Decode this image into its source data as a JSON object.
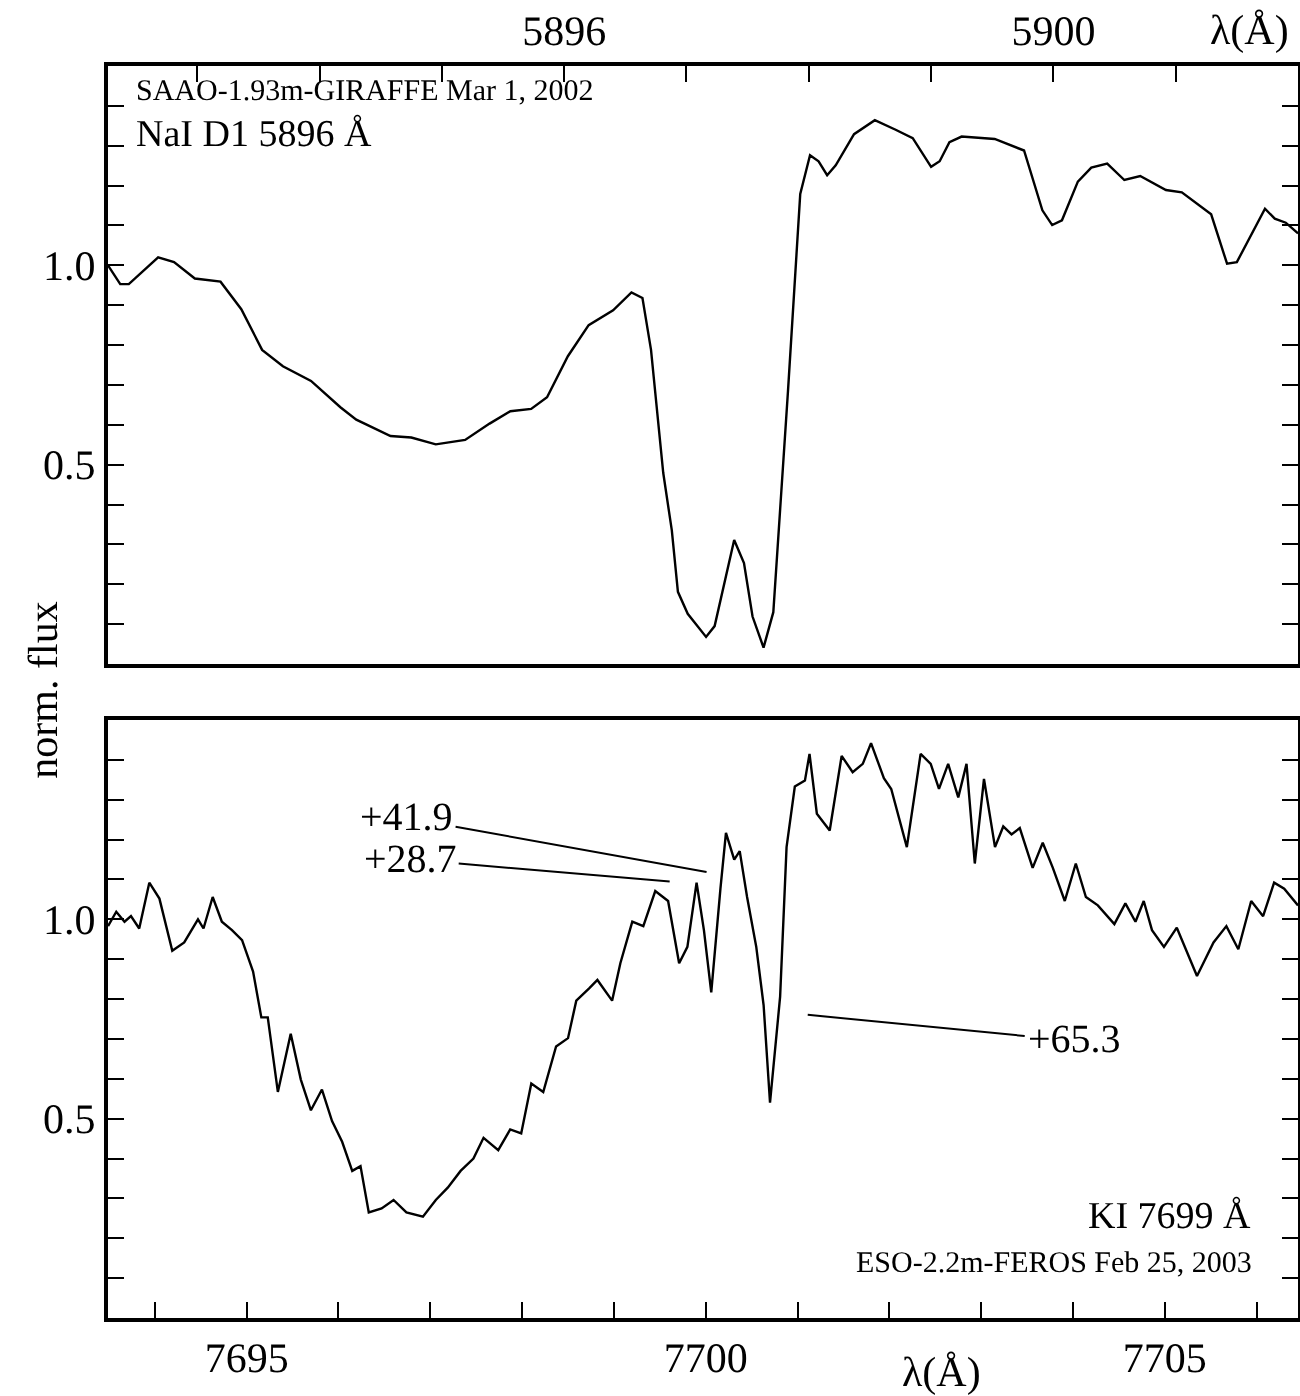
{
  "chart_data": [
    {
      "type": "line",
      "xlabel": "λ(Å)",
      "ylabel": "norm. flux",
      "annotations": [
        "SAAO-1.93m-GIRAFFE Mar 1, 2002",
        "NaI D1 5896 Å"
      ],
      "x": [
        5892.27,
        5892.37,
        5892.44,
        5892.68,
        5892.81,
        5892.98,
        5893.19,
        5893.36,
        5893.53,
        5893.7,
        5893.93,
        5894.17,
        5894.3,
        5894.58,
        5894.75,
        5894.95,
        5895.19,
        5895.39,
        5895.56,
        5895.73,
        5895.86,
        5896.03,
        5896.2,
        5896.4,
        5896.55,
        5896.64,
        5896.71,
        5896.81,
        5896.88,
        5896.93,
        5897.01,
        5897.16,
        5897.23,
        5897.39,
        5897.47,
        5897.54,
        5897.63,
        5897.71,
        5897.83,
        5897.93,
        5898.01,
        5898.08,
        5898.15,
        5898.22,
        5898.37,
        5898.54,
        5898.71,
        5898.85,
        5899.0,
        5899.07,
        5899.15,
        5899.25,
        5899.52,
        5899.76,
        5899.91,
        5899.99,
        5900.07,
        5900.2,
        5900.31,
        5900.44,
        5900.58,
        5900.71,
        5900.92,
        5901.05,
        5901.29,
        5901.42,
        5901.5,
        5901.73,
        5901.81,
        5901.9,
        5902.0
      ],
      "series": [
        {
          "color": "#000000",
          "values": [
            1.0,
            0.953,
            0.953,
            1.02,
            1.008,
            0.967,
            0.959,
            0.89,
            0.788,
            0.747,
            0.71,
            0.644,
            0.613,
            0.572,
            0.568,
            0.551,
            0.562,
            0.603,
            0.634,
            0.64,
            0.669,
            0.772,
            0.85,
            0.887,
            0.932,
            0.918,
            0.788,
            0.479,
            0.335,
            0.181,
            0.126,
            0.068,
            0.095,
            0.311,
            0.253,
            0.119,
            0.041,
            0.13,
            0.685,
            1.179,
            1.276,
            1.261,
            1.226,
            1.251,
            1.329,
            1.364,
            1.34,
            1.319,
            1.247,
            1.261,
            1.309,
            1.323,
            1.317,
            1.288,
            1.138,
            1.101,
            1.113,
            1.21,
            1.245,
            1.255,
            1.214,
            1.224,
            1.189,
            1.183,
            1.128,
            1.004,
            1.008,
            1.142,
            1.117,
            1.107,
            1.08
          ]
        }
      ],
      "xlim": [
        5892.27,
        5902.0
      ],
      "xticks": [
        {
          "value": 5893,
          "label": null
        },
        {
          "value": 5894,
          "label": null
        },
        {
          "value": 5895,
          "label": null
        },
        5896,
        {
          "value": 5897,
          "label": null
        },
        {
          "value": 5898,
          "label": null
        },
        {
          "value": 5899,
          "label": null
        },
        5900,
        {
          "value": 5901,
          "label": null
        }
      ],
      "ylim": [
        0,
        1.5
      ],
      "yticks": [
        {
          "value": 0.1,
          "label": null
        },
        {
          "value": 0.2,
          "label": null
        },
        {
          "value": 0.3,
          "label": null
        },
        {
          "value": 0.4,
          "label": null
        },
        0.5,
        {
          "value": 0.6,
          "label": null
        },
        {
          "value": 0.7,
          "label": null
        },
        {
          "value": 0.8,
          "label": null
        },
        {
          "value": 0.9,
          "label": null
        },
        {
          "value": 1.0,
          "label": "1.0"
        },
        {
          "value": 1.1,
          "label": null
        },
        {
          "value": 1.2,
          "label": null
        },
        {
          "value": 1.3,
          "label": null
        },
        {
          "value": 1.4,
          "label": null
        }
      ],
      "grid": false
    },
    {
      "type": "line",
      "xlabel": "λ(Å)",
      "annotations": [
        "KI 7699 Å",
        "ESO-2.2m-FEROS Feb 25, 2003",
        "+41.9",
        "+28.7",
        "+65.3"
      ],
      "x": [
        7693.49,
        7693.58,
        7693.67,
        7693.74,
        7693.83,
        7693.94,
        7694.05,
        7694.19,
        7694.32,
        7694.47,
        7694.53,
        7694.63,
        7694.73,
        7694.84,
        7694.95,
        7695.07,
        7695.16,
        7695.23,
        7695.34,
        7695.48,
        7695.59,
        7695.7,
        7695.82,
        7695.93,
        7696.04,
        7696.15,
        7696.24,
        7696.33,
        7696.47,
        7696.6,
        7696.74,
        7696.92,
        7697.06,
        7697.19,
        7697.33,
        7697.47,
        7697.58,
        7697.74,
        7697.87,
        7697.99,
        7698.1,
        7698.23,
        7698.37,
        7698.5,
        7698.59,
        7698.73,
        7698.82,
        7698.98,
        7699.07,
        7699.2,
        7699.32,
        7699.45,
        7699.59,
        7699.71,
        7699.8,
        7699.9,
        7699.98,
        7700.06,
        7700.16,
        7700.22,
        7700.31,
        7700.37,
        7700.45,
        7700.55,
        7700.63,
        7700.7,
        7700.81,
        7700.88,
        7700.97,
        7701.08,
        7701.13,
        7701.21,
        7701.35,
        7701.48,
        7701.6,
        7701.71,
        7701.8,
        7701.94,
        7702.02,
        7702.19,
        7702.34,
        7702.45,
        7702.54,
        7702.64,
        7702.75,
        7702.84,
        7702.93,
        7703.03,
        7703.15,
        7703.24,
        7703.33,
        7703.42,
        7703.56,
        7703.67,
        7703.78,
        7703.91,
        7704.03,
        7704.14,
        7704.27,
        7704.45,
        7704.57,
        7704.68,
        7704.77,
        7704.86,
        7704.99,
        7705.13,
        7705.35,
        7705.53,
        7705.67,
        7705.8,
        7705.94,
        7706.07,
        7706.19,
        7706.3,
        7706.45
      ],
      "series": [
        {
          "color": "#000000",
          "values": [
            0.983,
            1.019,
            0.994,
            1.008,
            0.977,
            1.092,
            1.052,
            0.921,
            0.942,
            1.0,
            0.977,
            1.056,
            0.994,
            0.973,
            0.948,
            0.869,
            0.754,
            0.754,
            0.567,
            0.713,
            0.598,
            0.521,
            0.573,
            0.494,
            0.442,
            0.369,
            0.381,
            0.265,
            0.275,
            0.296,
            0.265,
            0.254,
            0.296,
            0.327,
            0.369,
            0.4,
            0.452,
            0.421,
            0.473,
            0.463,
            0.588,
            0.567,
            0.681,
            0.702,
            0.796,
            0.827,
            0.848,
            0.796,
            0.89,
            0.994,
            0.983,
            1.071,
            1.046,
            0.89,
            0.931,
            1.092,
            0.973,
            0.817,
            1.077,
            1.217,
            1.15,
            1.171,
            1.056,
            0.931,
            0.785,
            0.54,
            0.806,
            1.181,
            1.333,
            1.348,
            1.415,
            1.265,
            1.223,
            1.41,
            1.369,
            1.39,
            1.442,
            1.354,
            1.327,
            1.181,
            1.415,
            1.39,
            1.327,
            1.39,
            1.306,
            1.39,
            1.14,
            1.352,
            1.181,
            1.233,
            1.213,
            1.229,
            1.129,
            1.192,
            1.129,
            1.046,
            1.14,
            1.056,
            1.035,
            0.988,
            1.04,
            0.994,
            1.046,
            0.973,
            0.931,
            0.979,
            0.858,
            0.942,
            0.983,
            0.925,
            1.046,
            1.008,
            1.092,
            1.077,
            1.035
          ]
        }
      ],
      "xlim": [
        7693.49,
        7706.45
      ],
      "xticks": [
        {
          "value": 7694,
          "label": null
        },
        7695,
        {
          "value": 7696,
          "label": null
        },
        {
          "value": 7697,
          "label": null
        },
        {
          "value": 7698,
          "label": null
        },
        {
          "value": 7699,
          "label": null
        },
        7700,
        {
          "value": 7701,
          "label": null
        },
        {
          "value": 7702,
          "label": null
        },
        {
          "value": 7703,
          "label": null
        },
        {
          "value": 7704,
          "label": null
        },
        7705,
        {
          "value": 7706,
          "label": null
        }
      ],
      "ylim": [
        0,
        1.5
      ],
      "yticks": [
        {
          "value": 0.1,
          "label": null
        },
        {
          "value": 0.2,
          "label": null
        },
        {
          "value": 0.3,
          "label": null
        },
        {
          "value": 0.4,
          "label": null
        },
        0.5,
        {
          "value": 0.6,
          "label": null
        },
        {
          "value": 0.7,
          "label": null
        },
        {
          "value": 0.8,
          "label": null
        },
        {
          "value": 0.9,
          "label": null
        },
        {
          "value": 1.0,
          "label": "1.0"
        },
        {
          "value": 1.1,
          "label": null
        },
        {
          "value": 1.2,
          "label": null
        },
        {
          "value": 1.3,
          "label": null
        },
        {
          "value": 1.4,
          "label": null
        }
      ],
      "grid": false
    }
  ]
}
